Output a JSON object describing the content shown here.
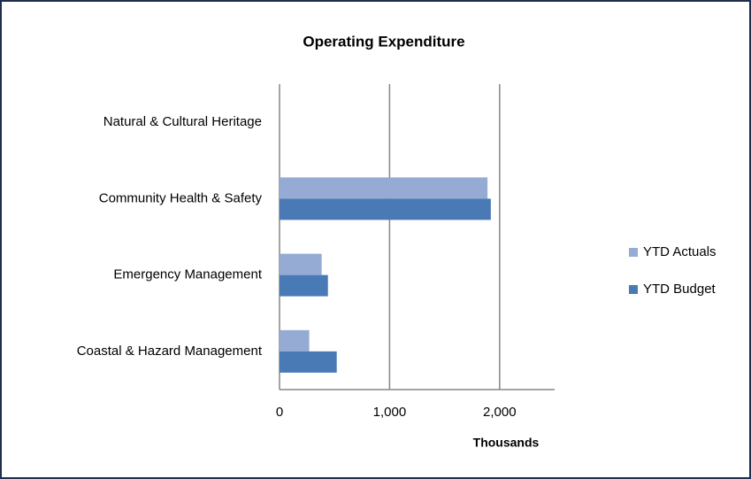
{
  "chart_data": {
    "type": "hbar",
    "title": "Operating Expenditure",
    "categories": [
      "Natural & Cultural Heritage",
      "Community Health & Safety",
      "Emergency Management",
      "Coastal & Hazard Management"
    ],
    "series": [
      {
        "name": "YTD Actuals",
        "color": "#95abd4",
        "values": [
          0,
          1890,
          383,
          270
        ]
      },
      {
        "name": "YTD Budget",
        "color": "#4a7ab5",
        "values": [
          0,
          1920,
          440,
          520
        ]
      }
    ],
    "xlabel": "Thousands",
    "xlim": [
      0,
      2500
    ],
    "xticks": [
      0,
      {
        "value": 1000,
        "label": "1,000"
      },
      {
        "value": 2000,
        "label": "2,000"
      }
    ],
    "grid": true,
    "legend": "right"
  }
}
